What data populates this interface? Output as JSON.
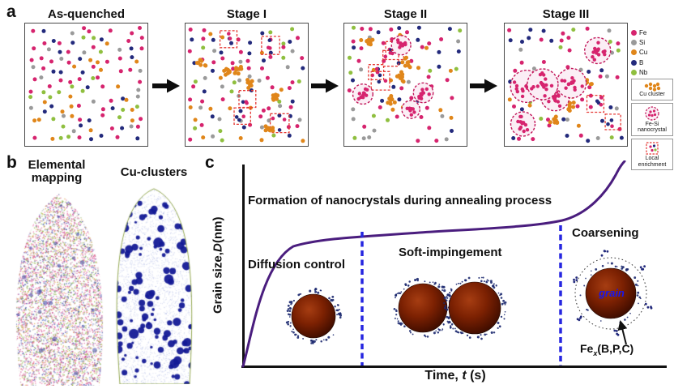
{
  "colors": {
    "fe": "#d6246e",
    "si": "#9a9a9a",
    "cu": "#e0861a",
    "b": "#232a7c",
    "nb": "#8fbf3f",
    "curve": "#4a1d7e",
    "dashed_line": "#2626e0",
    "nanocrystal_ring": "#c2185b",
    "nanocrystal_fill": "#fbeef5",
    "enrichment_box": "#e53935",
    "grain_text": "#1717ee",
    "axis": "#111111"
  },
  "panel_a": {
    "label": "a",
    "stages": [
      {
        "title": "As-quenched"
      },
      {
        "title": "Stage I"
      },
      {
        "title": "Stage II"
      },
      {
        "title": "Stage III"
      }
    ],
    "legend": {
      "atoms": [
        {
          "label": "Fe",
          "color_key": "fe"
        },
        {
          "label": "Si",
          "color_key": "si"
        },
        {
          "label": "Cu",
          "color_key": "cu"
        },
        {
          "label": "B",
          "color_key": "b"
        },
        {
          "label": "Nb",
          "color_key": "nb"
        }
      ],
      "special": [
        {
          "label": "Cu cluster"
        },
        {
          "label": "Fe-Si nanocrystal"
        },
        {
          "label": "Local enrichment"
        }
      ]
    }
  },
  "panel_b": {
    "label": "b",
    "left_title": "Elemental mapping",
    "right_title": "Cu-clusters",
    "left_palette": [
      "#e8679f",
      "#c2307f",
      "#86b33c",
      "#5a6fc0",
      "#28309a",
      "#b9b9b9",
      "#e0a040"
    ],
    "right_palette": {
      "speckle": "#93a0dc",
      "blob": "#141a96",
      "outline": "#8aa040"
    }
  },
  "panel_c": {
    "label": "c",
    "annotation": "Formation of nanocrystals during annealing process",
    "ylabel_parts": [
      "Grain size, ",
      "D",
      " (nm)"
    ],
    "xlabel_parts": [
      "Time, ",
      "t",
      " (s)"
    ],
    "regions": [
      {
        "label": "Diffusion control"
      },
      {
        "label": "Soft-impingement"
      },
      {
        "label": "Coarsening"
      }
    ],
    "grain_label": "grain",
    "precipitate_label_parts": [
      "Fe",
      "x",
      "(B,P,C)"
    ]
  },
  "chart_data": {
    "type": "line",
    "title": "Formation of nanocrystals during annealing process",
    "xlabel": "Time, t (s)",
    "ylabel": "Grain size, D (nm)",
    "axes_numeric_labels": false,
    "grid": false,
    "legend_position": "none",
    "series": [
      {
        "name": "grain size vs annealing time (schematic sigmoid with final upturn)",
        "x": [
          0,
          3,
          8,
          15,
          25,
          40,
          55,
          70,
          80,
          88,
          93,
          97,
          100
        ],
        "y": [
          0,
          20,
          48,
          58,
          61,
          63,
          65,
          67,
          70,
          75,
          83,
          93,
          100
        ]
      }
    ],
    "regions": [
      {
        "label": "Diffusion control",
        "x_range_pct": [
          0,
          28
        ]
      },
      {
        "label": "Soft-impingement",
        "x_range_pct": [
          28,
          75
        ]
      },
      {
        "label": "Coarsening",
        "x_range_pct": [
          75,
          100
        ]
      }
    ],
    "annotations": [
      "grain",
      "Fex(B,P,C)"
    ]
  }
}
